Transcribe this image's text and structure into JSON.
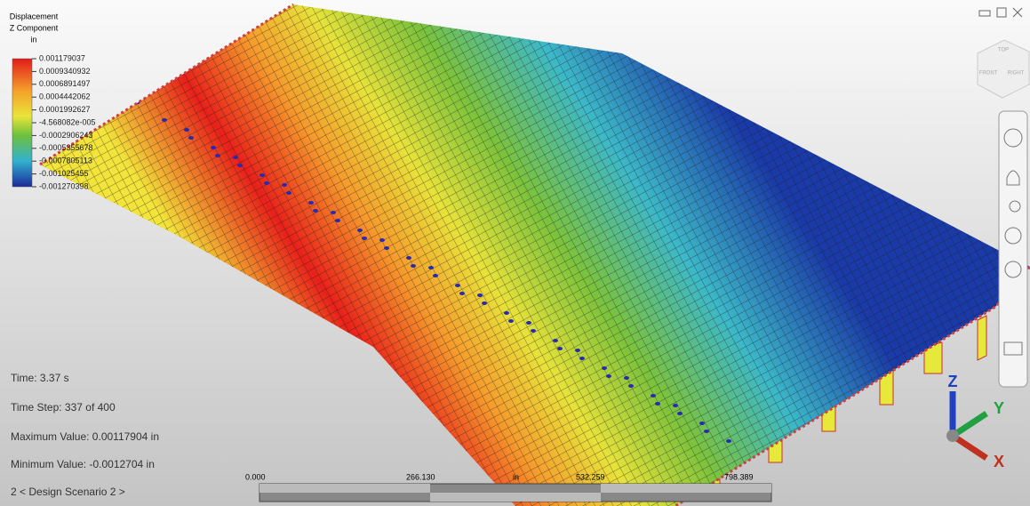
{
  "legend": {
    "title": [
      "Displacement",
      "Z Component",
      "in"
    ],
    "values": [
      "0.001179037",
      "0.0009340932",
      "0.0006891497",
      "0.0004442062",
      "0.0001992627",
      "-4.568082e-005",
      "-0.0002906243",
      "-0.0005355678",
      "-0.0007805113",
      "-0.001025455",
      "-0.001270398"
    ]
  },
  "status": [
    "Time: 3.37 s",
    "Time Step:  337 of 400",
    "Maximum Value: 0.00117904 in",
    "Minimum Value: -0.0012704 in",
    "2 < Design Scenario 2 >"
  ],
  "scale_bar": {
    "ticks": [
      "0.000",
      "266.130",
      "532.259",
      "798.389"
    ],
    "unit": "in"
  },
  "triad": {
    "z": "Z",
    "y": "Y",
    "x": "X"
  },
  "view_cube": {
    "top": "TOP",
    "front": "FRONT",
    "right": "RIGHT"
  }
}
